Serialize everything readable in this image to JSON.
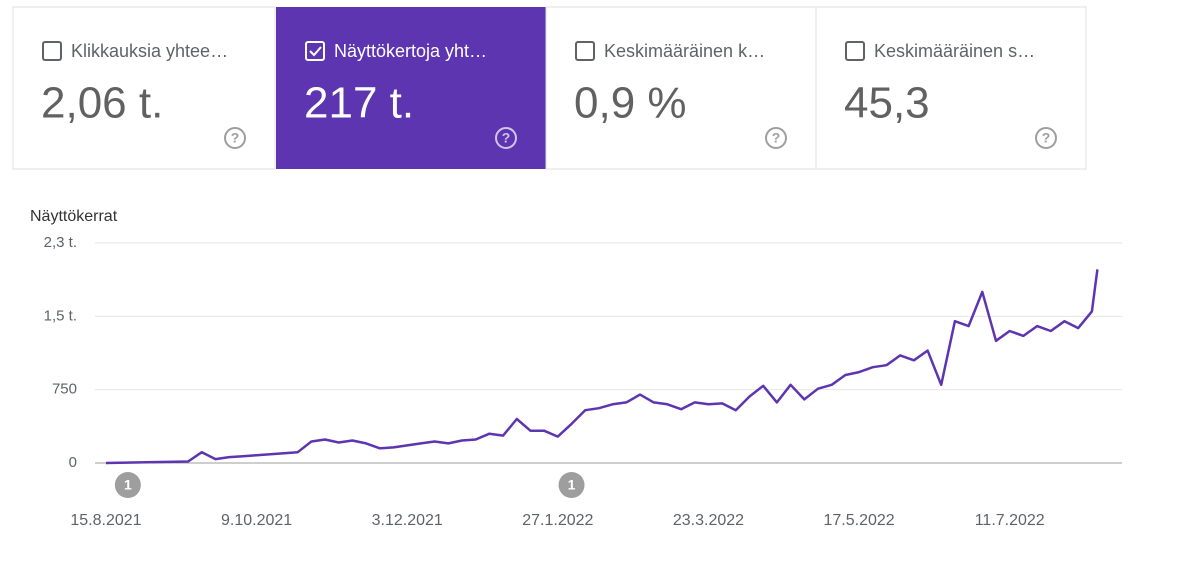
{
  "cards": [
    {
      "label": "Klikkauksia yhtee…",
      "value": "2,06 t.",
      "checked": false
    },
    {
      "label": "Näyttökertoja yht…",
      "value": "217 t.",
      "checked": true
    },
    {
      "label": "Keskimääräinen k…",
      "value": "0,9 %",
      "checked": false
    },
    {
      "label": "Keskimääräinen s…",
      "value": "45,3",
      "checked": false
    }
  ],
  "chart_data": {
    "type": "line",
    "y_label": "Näyttökerrat",
    "color": "#5e35b1",
    "grid": true,
    "ylim": [
      0,
      2250
    ],
    "yticks": [
      0,
      750,
      {
        "value": 1500,
        "label": "1,5 t."
      },
      {
        "value": 2250,
        "label": "2,3 t."
      }
    ],
    "xlim": [
      "11.8.2021",
      "21.8.2022"
    ],
    "xticks": [
      "15.8.2021",
      "9.10.2021",
      "3.12.2021",
      "27.1.2022",
      "23.3.2022",
      "17.5.2022",
      "11.7.2022"
    ],
    "annotations": [
      {
        "x": "23.8.2021",
        "label": "1"
      },
      {
        "x": "1.2.2022",
        "label": "1"
      }
    ],
    "x": [
      "15.8.2021",
      "20.8.2021",
      "25.8.2021",
      "30.8.2021",
      "4.9.2021",
      "9.9.2021",
      "14.9.2021",
      "19.9.2021",
      "24.9.2021",
      "29.9.2021",
      "4.10.2021",
      "9.10.2021",
      "14.10.2021",
      "19.10.2021",
      "24.10.2021",
      "29.10.2021",
      "3.11.2021",
      "8.11.2021",
      "13.11.2021",
      "18.11.2021",
      "23.11.2021",
      "28.11.2021",
      "3.12.2021",
      "8.12.2021",
      "13.12.2021",
      "18.12.2021",
      "23.12.2021",
      "28.12.2021",
      "2.1.2022",
      "7.1.2022",
      "12.1.2022",
      "17.1.2022",
      "22.1.2022",
      "27.1.2022",
      "1.2.2022",
      "6.2.2022",
      "11.2.2022",
      "16.2.2022",
      "21.2.2022",
      "26.2.2022",
      "3.3.2022",
      "8.3.2022",
      "13.3.2022",
      "18.3.2022",
      "23.3.2022",
      "28.3.2022",
      "2.4.2022",
      "7.4.2022",
      "12.4.2022",
      "17.4.2022",
      "22.4.2022",
      "27.4.2022",
      "2.5.2022",
      "7.5.2022",
      "12.5.2022",
      "17.5.2022",
      "22.5.2022",
      "27.5.2022",
      "1.6.2022",
      "6.6.2022",
      "11.6.2022",
      "16.6.2022",
      "21.6.2022",
      "26.6.2022",
      "1.7.2022",
      "6.7.2022",
      "11.7.2022",
      "16.7.2022",
      "21.7.2022",
      "26.7.2022",
      "31.7.2022",
      "5.8.2022",
      "10.8.2022",
      "12.8.2022"
    ],
    "series": [
      {
        "name": "Näyttökerrat",
        "color": "#5e35b1",
        "values": [
          0,
          2,
          5,
          8,
          10,
          12,
          15,
          110,
          40,
          60,
          70,
          80,
          90,
          100,
          110,
          220,
          240,
          210,
          230,
          200,
          150,
          160,
          180,
          200,
          220,
          200,
          230,
          240,
          300,
          280,
          450,
          330,
          330,
          270,
          400,
          540,
          560,
          600,
          620,
          700,
          620,
          600,
          550,
          620,
          600,
          610,
          540,
          680,
          790,
          620,
          800,
          650,
          760,
          800,
          900,
          930,
          980,
          1000,
          1100,
          1050,
          1150,
          800,
          1450,
          1400,
          1750,
          1250,
          1350,
          1300,
          1400,
          1350,
          1450,
          1380,
          1550,
          1980
        ]
      }
    ]
  }
}
